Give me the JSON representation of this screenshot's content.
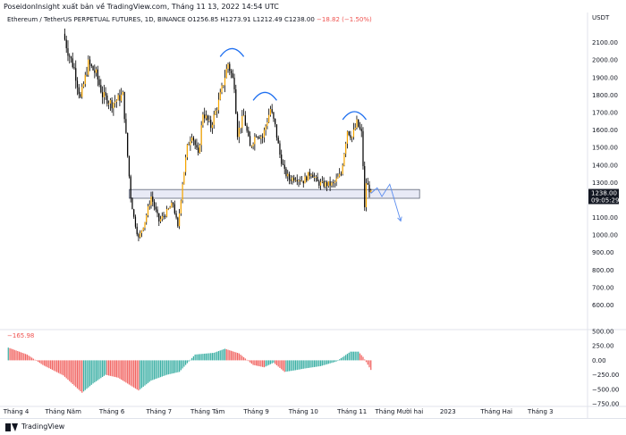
{
  "publish_line": "PoseidonInsight xuất bản về TradingView.com, Tháng 11 13, 2022 14:54 UTC",
  "legend": {
    "symbol": "Ethereum / TetherUS PERPETUAL FUTURES, 1D, BINANCE",
    "open": "O1256.85",
    "high": "H1273.91",
    "low": "L1212.49",
    "close": "C1238.00",
    "change": "−18.82 (−1.50%)"
  },
  "oscillator_label": {
    "name": "",
    "value": "−165.98"
  },
  "price_badge": {
    "price": "1238.00",
    "countdown": "09:05:29"
  },
  "footer": {
    "brand": "TradingView"
  },
  "colors": {
    "up_body": "#f7a600",
    "down_body": "#000000",
    "wick": "#000000",
    "support_zone_fill": "#e8eaf6",
    "support_zone_border": "#5d6476",
    "annotation": "#1e6ff0",
    "hist_up": "#26a69a",
    "hist_down": "#ef5350"
  },
  "chart_data": [
    {
      "type": "candlestick",
      "title": "Ethereum / TetherUS PERPETUAL FUTURES, 1D, BINANCE",
      "yaxis_unit": "USDT",
      "ylim": [
        470,
        2200
      ],
      "yticks": [
        600,
        700,
        800,
        900,
        1000,
        1100,
        1200,
        1300,
        1400,
        1500,
        1600,
        1700,
        1800,
        1900,
        2000,
        2100
      ],
      "ytick_labels": [
        "600.00",
        "700.00",
        "800.00",
        "900.00",
        "1000.00",
        "1100.00",
        "1200.00",
        "1300.00",
        "1400.00",
        "1500.00",
        "1600.00",
        "1700.00",
        "1800.00",
        "1900.00",
        "2000.00",
        "2100.00"
      ],
      "x_labels": [
        "Tháng 4",
        "Tháng Năm",
        "Tháng 6",
        "Tháng 7",
        "Tháng Tám",
        "Tháng 9",
        "Tháng 10",
        "Tháng 11",
        "Tháng Mười hai",
        "2023",
        "Tháng Hai",
        "Tháng 3"
      ],
      "x_label_dates": [
        "2022-04-01",
        "2022-05-01",
        "2022-06-01",
        "2022-07-01",
        "2022-08-01",
        "2022-09-01",
        "2022-10-01",
        "2022-11-01",
        "2022-12-01",
        "2023-01-01",
        "2023-02-01",
        "2023-03-01"
      ],
      "x_range": [
        "2022-03-24",
        "2023-03-31"
      ],
      "grid": false,
      "price_anchors": [
        [
          "2022-05-01",
          2150
        ],
        [
          "2022-05-04",
          2050
        ],
        [
          "2022-05-08",
          1950
        ],
        [
          "2022-05-12",
          1780
        ],
        [
          "2022-05-17",
          1980
        ],
        [
          "2022-05-22",
          1920
        ],
        [
          "2022-05-26",
          1800
        ],
        [
          "2022-06-01",
          1750
        ],
        [
          "2022-06-08",
          1800
        ],
        [
          "2022-06-13",
          1220
        ],
        [
          "2022-06-15",
          1100
        ],
        [
          "2022-06-18",
          980
        ],
        [
          "2022-06-22",
          1080
        ],
        [
          "2022-06-26",
          1220
        ],
        [
          "2022-07-01",
          1080
        ],
        [
          "2022-07-05",
          1120
        ],
        [
          "2022-07-10",
          1180
        ],
        [
          "2022-07-13",
          1040
        ],
        [
          "2022-07-16",
          1300
        ],
        [
          "2022-07-19",
          1500
        ],
        [
          "2022-07-22",
          1580
        ],
        [
          "2022-07-26",
          1450
        ],
        [
          "2022-07-29",
          1700
        ],
        [
          "2022-08-03",
          1620
        ],
        [
          "2022-08-08",
          1760
        ],
        [
          "2022-08-14",
          1980
        ],
        [
          "2022-08-18",
          1860
        ],
        [
          "2022-08-20",
          1580
        ],
        [
          "2022-08-24",
          1680
        ],
        [
          "2022-08-28",
          1500
        ],
        [
          "2022-09-01",
          1580
        ],
        [
          "2022-09-05",
          1560
        ],
        [
          "2022-09-10",
          1720
        ],
        [
          "2022-09-13",
          1620
        ],
        [
          "2022-09-16",
          1460
        ],
        [
          "2022-09-19",
          1360
        ],
        [
          "2022-09-22",
          1320
        ],
        [
          "2022-09-26",
          1330
        ],
        [
          "2022-10-01",
          1310
        ],
        [
          "2022-10-06",
          1360
        ],
        [
          "2022-10-10",
          1300
        ],
        [
          "2022-10-13",
          1290
        ],
        [
          "2022-10-20",
          1290
        ],
        [
          "2022-10-25",
          1350
        ],
        [
          "2022-10-29",
          1600
        ],
        [
          "2022-11-01",
          1560
        ],
        [
          "2022-11-04",
          1640
        ],
        [
          "2022-11-07",
          1580
        ],
        [
          "2022-11-08",
          1400
        ],
        [
          "2022-11-09",
          1150
        ],
        [
          "2022-11-10",
          1300
        ],
        [
          "2022-11-12",
          1260
        ],
        [
          "2022-11-13",
          1238
        ]
      ],
      "annotations": {
        "support_zone": {
          "y0": 1210,
          "y1": 1260,
          "x_start": "2022-06-12",
          "x_end": "2022-12-14"
        },
        "shoulder_arcs": [
          {
            "x0": "2022-08-09",
            "x1": "2022-08-24",
            "y": 2060
          },
          {
            "x0": "2022-08-30",
            "x1": "2022-09-14",
            "y": 1810
          },
          {
            "x0": "2022-10-26",
            "x1": "2022-11-10",
            "y": 1700
          }
        ],
        "projection_path": [
          [
            "2022-11-13",
            1238
          ],
          [
            "2022-11-17",
            1270
          ],
          [
            "2022-11-20",
            1220
          ],
          [
            "2022-11-25",
            1290
          ],
          [
            "2022-12-02",
            1080
          ]
        ]
      }
    },
    {
      "type": "bar",
      "title": "",
      "ylim": [
        -750,
        500
      ],
      "yticks": [
        500,
        250,
        0,
        -250,
        -500,
        -750
      ],
      "ytick_labels": [
        "500.00",
        "250.00",
        "0.00",
        "−250.00",
        "−500.00",
        "−750.00"
      ],
      "last_value": -165.98,
      "value_anchors": [
        [
          "2022-03-27",
          220
        ],
        [
          "2022-04-08",
          100
        ],
        [
          "2022-04-18",
          -80
        ],
        [
          "2022-05-01",
          -260
        ],
        [
          "2022-05-13",
          -560
        ],
        [
          "2022-05-20",
          -400
        ],
        [
          "2022-05-28",
          -250
        ],
        [
          "2022-06-05",
          -300
        ],
        [
          "2022-06-18",
          -520
        ],
        [
          "2022-06-26",
          -350
        ],
        [
          "2022-07-06",
          -250
        ],
        [
          "2022-07-14",
          -200
        ],
        [
          "2022-07-24",
          100
        ],
        [
          "2022-08-05",
          130
        ],
        [
          "2022-08-12",
          200
        ],
        [
          "2022-08-21",
          120
        ],
        [
          "2022-08-30",
          -80
        ],
        [
          "2022-09-06",
          -120
        ],
        [
          "2022-09-12",
          -40
        ],
        [
          "2022-09-19",
          -200
        ],
        [
          "2022-09-26",
          -170
        ],
        [
          "2022-10-02",
          -140
        ],
        [
          "2022-10-12",
          -100
        ],
        [
          "2022-10-22",
          -20
        ],
        [
          "2022-10-31",
          150
        ],
        [
          "2022-11-05",
          150
        ],
        [
          "2022-11-08",
          60
        ],
        [
          "2022-11-13",
          -165.98
        ]
      ]
    }
  ]
}
